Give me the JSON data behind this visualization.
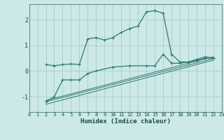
{
  "title": "",
  "xlabel": "Humidex (Indice chaleur)",
  "bg_color": "#cce8e8",
  "grid_color": "#aacccc",
  "line_color": "#2d7a6e",
  "xlim": [
    0,
    23
  ],
  "ylim": [
    -1.6,
    2.6
  ],
  "yticks": [
    -1,
    0,
    1,
    2
  ],
  "xticks": [
    0,
    1,
    2,
    3,
    4,
    5,
    6,
    7,
    8,
    9,
    10,
    11,
    12,
    13,
    14,
    15,
    16,
    17,
    18,
    19,
    20,
    21,
    22,
    23
  ],
  "series1_x": [
    2,
    3,
    4,
    5,
    6,
    7,
    8,
    9,
    10,
    11,
    12,
    13,
    14,
    15,
    15,
    16,
    17,
    18,
    19,
    20,
    21,
    22
  ],
  "series1_y": [
    0.25,
    0.2,
    0.25,
    0.27,
    0.25,
    1.25,
    1.3,
    1.2,
    1.3,
    1.5,
    1.65,
    1.75,
    2.3,
    2.35,
    2.35,
    2.25,
    0.65,
    0.35,
    0.35,
    0.45,
    0.55,
    0.5
  ],
  "series2_x": [
    2,
    3,
    4,
    5,
    6,
    7,
    8,
    10,
    12,
    14,
    15,
    16,
    17,
    18,
    19,
    20,
    21,
    22
  ],
  "series2_y": [
    -1.2,
    -1.0,
    -0.35,
    -0.35,
    -0.35,
    -0.1,
    0.0,
    0.15,
    0.2,
    0.2,
    0.2,
    0.65,
    0.3,
    0.3,
    0.35,
    0.4,
    0.5,
    0.5
  ],
  "line1_x": [
    2,
    22
  ],
  "line1_y": [
    -1.2,
    0.48
  ],
  "line2_x": [
    2,
    22
  ],
  "line2_y": [
    -1.3,
    0.42
  ],
  "line3_x": [
    2,
    22
  ],
  "line3_y": [
    -1.15,
    0.55
  ]
}
